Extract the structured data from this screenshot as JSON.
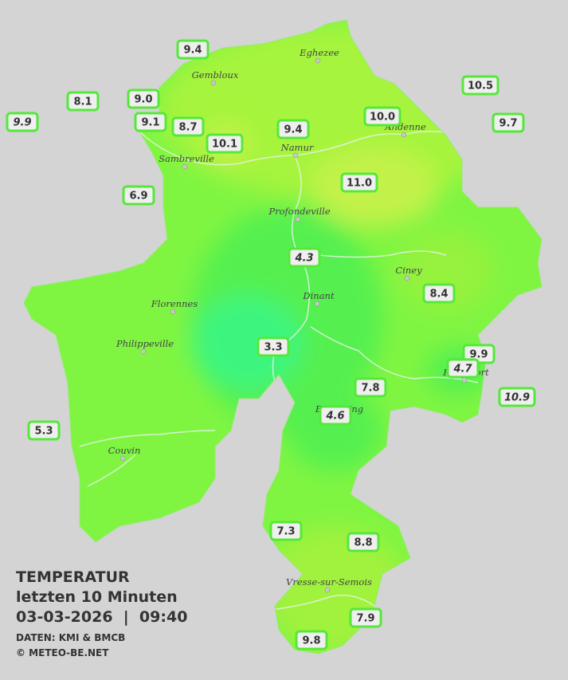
{
  "legend": {
    "title": "TEMPERATUR",
    "subtitle": "letzten 10 Minuten",
    "datetime": "03-03-2026  |  09:40",
    "source": "DATEN: KMI & BMCB",
    "copyright": "© METEO-BE.NET"
  },
  "cities": [
    "Gembloux",
    "Eghezee",
    "Andenne",
    "Namur",
    "Sambreville",
    "Profondeville",
    "Ciney",
    "Dinant",
    "Florennes",
    "Philippeville",
    "Rochefort",
    "Beauraing",
    "Couvin",
    "Vresse-sur-Semois"
  ],
  "stations": [
    {
      "label": "9.4",
      "italic": false
    },
    {
      "label": "8.1",
      "italic": false
    },
    {
      "label": "9.9",
      "italic": true
    },
    {
      "label": "9.0",
      "italic": false
    },
    {
      "label": "9.1",
      "italic": false
    },
    {
      "label": "8.7",
      "italic": false
    },
    {
      "label": "10.1",
      "italic": false
    },
    {
      "label": "9.4",
      "italic": false
    },
    {
      "label": "10.0",
      "italic": false
    },
    {
      "label": "10.5",
      "italic": false
    },
    {
      "label": "9.7",
      "italic": false
    },
    {
      "label": "11.0",
      "italic": false
    },
    {
      "label": "6.9",
      "italic": false
    },
    {
      "label": "4.3",
      "italic": true
    },
    {
      "label": "8.4",
      "italic": false
    },
    {
      "label": "3.3",
      "italic": false
    },
    {
      "label": "9.9",
      "italic": false
    },
    {
      "label": "4.7",
      "italic": true
    },
    {
      "label": "7.8",
      "italic": false
    },
    {
      "label": "4.6",
      "italic": true
    },
    {
      "label": "10.9",
      "italic": true
    },
    {
      "label": "5.3",
      "italic": false
    },
    {
      "label": "7.3",
      "italic": false
    },
    {
      "label": "8.8",
      "italic": false
    },
    {
      "label": "7.9",
      "italic": false
    },
    {
      "label": "9.8",
      "italic": false
    }
  ]
}
